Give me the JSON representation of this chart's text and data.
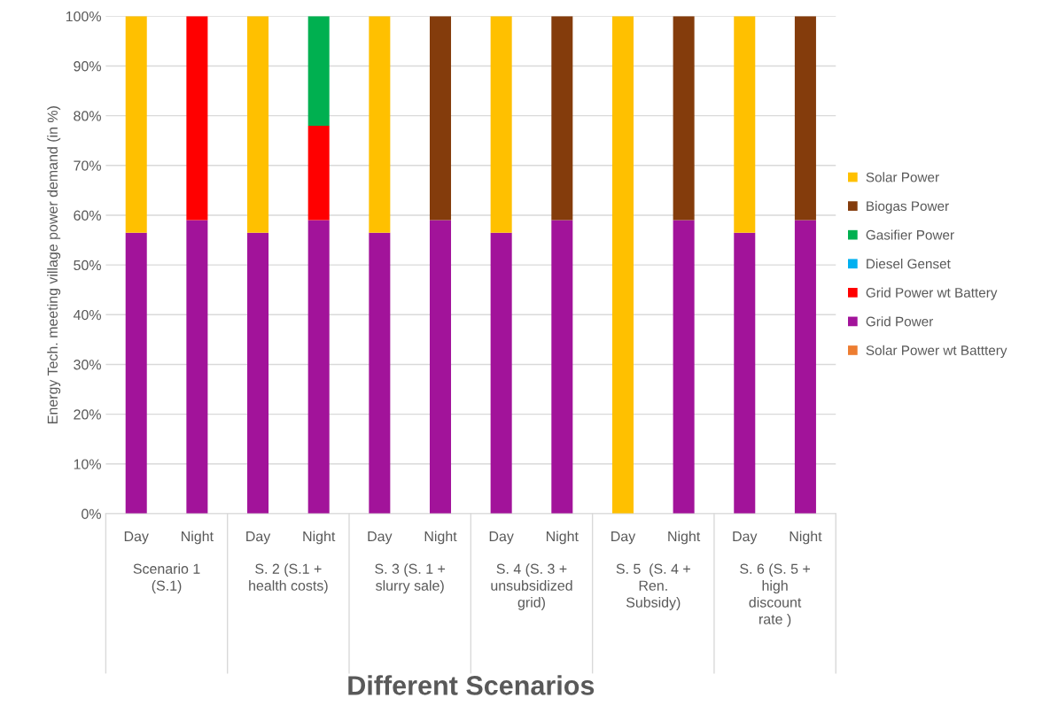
{
  "chart_data": {
    "type": "bar",
    "stacked": true,
    "xlabel": "Different Scenarios",
    "ylabel": "Energy Tech. meeting village power demand (in %)",
    "categories": [
      "Day",
      "Night",
      "Day",
      "Night",
      "Day",
      "Night",
      "Day",
      "Night",
      "Day",
      "Night",
      "Day",
      "Night"
    ],
    "annotations": [
      "Scenario 1\n(S.1)",
      "S. 2 (S.1 +\nhealth costs)",
      "S. 3 (S. 1 +\nslurry sale)",
      "S. 4 (S. 3 +\nunsubsidized\ngrid)",
      "S. 5  (S. 4 +\nRen.\nSubsidy)",
      "S. 6 (S. 5 +\nhigh\ndiscount\nrate )"
    ],
    "series": [
      {
        "name": "Solar Power wt Batttery",
        "color": "#ed7d31",
        "values": [
          0,
          0,
          0,
          0,
          0,
          0,
          0,
          0,
          0,
          0,
          0,
          0
        ]
      },
      {
        "name": "Grid Power",
        "color": "#a2139a",
        "values": [
          56.5,
          59,
          56.5,
          59,
          56.5,
          59,
          56.5,
          59,
          0,
          59,
          56.5,
          59
        ]
      },
      {
        "name": "Grid Power wt Battery",
        "color": "#ff0000",
        "values": [
          0,
          41,
          0,
          19,
          0,
          0,
          0,
          0,
          0,
          0,
          0,
          0
        ]
      },
      {
        "name": "Diesel Genset",
        "color": "#00b0f0",
        "values": [
          0,
          0,
          0,
          0,
          0,
          0,
          0,
          0,
          0,
          0,
          0,
          0
        ]
      },
      {
        "name": "Gasifier Power",
        "color": "#00b050",
        "values": [
          0,
          0,
          0,
          22,
          0,
          0,
          0,
          0,
          0,
          0,
          0,
          0
        ]
      },
      {
        "name": "Biogas Power",
        "color": "#843c0c",
        "values": [
          0,
          0,
          0,
          0,
          0,
          41,
          0,
          41,
          0,
          41,
          0,
          41
        ]
      },
      {
        "name": "Solar Power",
        "color": "#ffc000",
        "values": [
          43.5,
          0,
          43.5,
          0,
          43.5,
          0,
          43.5,
          0,
          100,
          0,
          43.5,
          0
        ]
      }
    ],
    "ylim": [
      0,
      100
    ],
    "yticks": [
      {
        "value": 0,
        "label": "0%"
      },
      {
        "value": 10,
        "label": "10%"
      },
      {
        "value": 20,
        "label": "20%"
      },
      {
        "value": 30,
        "label": "30%"
      },
      {
        "value": 40,
        "label": "40%"
      },
      {
        "value": 50,
        "label": "50%"
      },
      {
        "value": 60,
        "label": "60%"
      },
      {
        "value": 70,
        "label": "70%"
      },
      {
        "value": 80,
        "label": "80%"
      },
      {
        "value": 90,
        "label": "90%"
      },
      {
        "value": 100,
        "label": "100%"
      }
    ],
    "grid": "y",
    "legend": "right"
  }
}
